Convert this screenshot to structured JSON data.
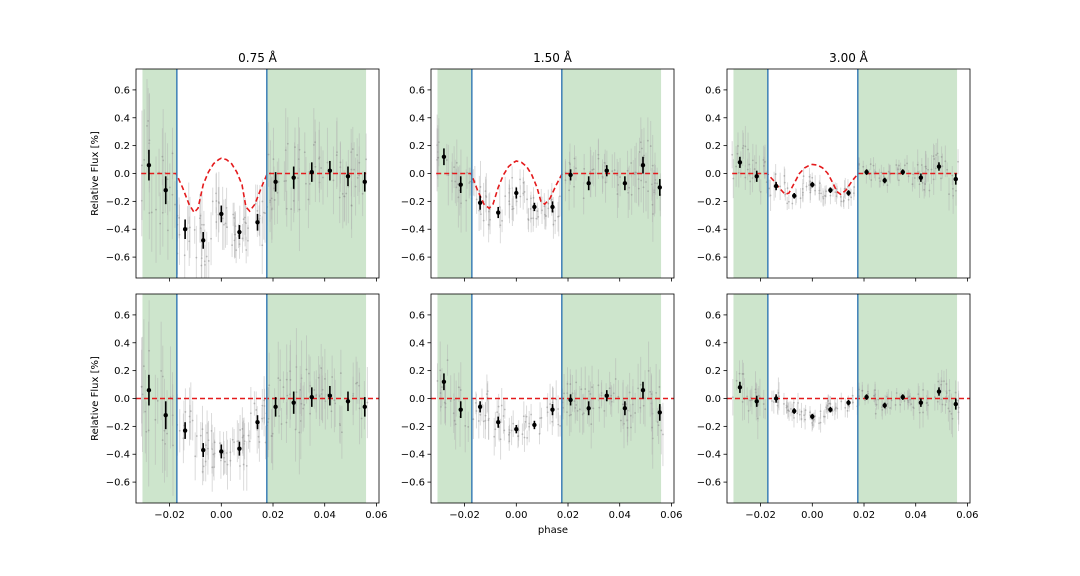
{
  "figure": {
    "shared_xlabel": "phase",
    "shared_ylabel": "Relative Flux [%]",
    "colors": {
      "shade": "#cde5cc",
      "transit_line": "#3d7fb6",
      "model": "#e41a1c",
      "binned": "#000000",
      "raw": "#b0b0b0"
    }
  },
  "chart_data": [
    {
      "type": "scatter",
      "title": "0.75 Å",
      "xlim": [
        -0.033,
        0.061
      ],
      "ylim": [
        -0.75,
        0.75
      ],
      "x_ticks": [
        -0.02,
        0.0,
        0.02,
        0.04,
        0.06
      ],
      "x_tick_labels": [
        "",
        "",
        "",
        "",
        ""
      ],
      "y_ticks": [
        -0.6,
        -0.4,
        -0.2,
        0.0,
        0.2,
        0.4,
        0.6
      ],
      "y_tick_labels": [
        "−0.6",
        "−0.4",
        "−0.2",
        "0.0",
        "0.2",
        "0.4",
        "0.6"
      ],
      "shaded_regions": [
        [
          -0.0305,
          -0.0172
        ],
        [
          0.0176,
          0.056
        ]
      ],
      "transit_lines": [
        -0.0172,
        0.0176
      ],
      "series": [
        {
          "x": [
            -0.028,
            -0.0215,
            -0.014,
            -0.007,
            0.0,
            0.007,
            0.014,
            0.021,
            0.028,
            0.035,
            0.042,
            0.049,
            0.0555
          ],
          "y": [
            0.06,
            -0.12,
            -0.4,
            -0.48,
            -0.29,
            -0.42,
            -0.35,
            -0.06,
            -0.03,
            0.01,
            0.02,
            -0.02,
            -0.06
          ],
          "err": [
            0.11,
            0.1,
            0.07,
            0.06,
            0.06,
            0.05,
            0.06,
            0.07,
            0.08,
            0.07,
            0.07,
            0.07,
            0.07
          ]
        }
      ],
      "model": {
        "x": [
          -0.031,
          -0.0175,
          -0.015,
          -0.0125,
          -0.0105,
          -0.009,
          -0.007,
          -0.005,
          -0.003,
          -0.001,
          0.0,
          0.002,
          0.004,
          0.006,
          0.008,
          0.0095,
          0.011,
          0.013,
          0.0155,
          0.0178,
          0.056
        ],
        "y": [
          0.0,
          0.0,
          -0.1,
          -0.22,
          -0.28,
          -0.25,
          -0.08,
          0.01,
          0.07,
          0.1,
          0.11,
          0.1,
          0.07,
          0.01,
          -0.08,
          -0.24,
          -0.27,
          -0.22,
          -0.1,
          0.0,
          0.0
        ]
      }
    },
    {
      "type": "scatter",
      "title": "1.50 Å",
      "xlim": [
        -0.033,
        0.061
      ],
      "ylim": [
        -0.75,
        0.75
      ],
      "x_ticks": [
        -0.02,
        0.0,
        0.02,
        0.04,
        0.06
      ],
      "x_tick_labels": [
        "",
        "",
        "",
        "",
        ""
      ],
      "y_ticks": [
        -0.6,
        -0.4,
        -0.2,
        0.0,
        0.2,
        0.4,
        0.6
      ],
      "y_tick_labels": [
        "−0.6",
        "−0.4",
        "−0.2",
        "0.0",
        "0.2",
        "0.4",
        "0.6"
      ],
      "shaded_regions": [
        [
          -0.0305,
          -0.0172
        ],
        [
          0.0176,
          0.056
        ]
      ],
      "transit_lines": [
        -0.0172,
        0.0176
      ],
      "series": [
        {
          "x": [
            -0.028,
            -0.0215,
            -0.014,
            -0.007,
            0.0,
            0.007,
            0.014,
            0.021,
            0.028,
            0.035,
            0.042,
            0.049,
            0.0555
          ],
          "y": [
            0.12,
            -0.08,
            -0.21,
            -0.28,
            -0.14,
            -0.24,
            -0.24,
            -0.01,
            -0.07,
            0.02,
            -0.07,
            0.06,
            -0.1
          ],
          "err": [
            0.06,
            0.06,
            0.05,
            0.04,
            0.04,
            0.03,
            0.04,
            0.04,
            0.05,
            0.04,
            0.05,
            0.06,
            0.06
          ]
        }
      ],
      "model": {
        "x": [
          -0.031,
          -0.0175,
          -0.015,
          -0.0125,
          -0.0105,
          -0.009,
          -0.007,
          -0.005,
          -0.003,
          -0.001,
          0.0,
          0.002,
          0.004,
          0.006,
          0.008,
          0.0095,
          0.011,
          0.013,
          0.0155,
          0.0178,
          0.056
        ],
        "y": [
          0.0,
          0.0,
          -0.12,
          -0.22,
          -0.25,
          -0.22,
          -0.1,
          -0.01,
          0.05,
          0.08,
          0.09,
          0.08,
          0.05,
          -0.01,
          -0.1,
          -0.2,
          -0.22,
          -0.18,
          -0.08,
          0.0,
          0.0
        ]
      }
    },
    {
      "type": "scatter",
      "title": "3.00 Å",
      "xlim": [
        -0.033,
        0.061
      ],
      "ylim": [
        -0.75,
        0.75
      ],
      "x_ticks": [
        -0.02,
        0.0,
        0.02,
        0.04,
        0.06
      ],
      "x_tick_labels": [
        "",
        "",
        "",
        "",
        ""
      ],
      "y_ticks": [
        -0.6,
        -0.4,
        -0.2,
        0.0,
        0.2,
        0.4,
        0.6
      ],
      "y_tick_labels": [
        "−0.6",
        "−0.4",
        "−0.2",
        "0.0",
        "0.2",
        "0.4",
        "0.6"
      ],
      "shaded_regions": [
        [
          -0.0305,
          -0.0172
        ],
        [
          0.0176,
          0.056
        ]
      ],
      "transit_lines": [
        -0.0172,
        0.0176
      ],
      "series": [
        {
          "x": [
            -0.028,
            -0.0215,
            -0.014,
            -0.007,
            0.0,
            0.007,
            0.014,
            0.021,
            0.028,
            0.035,
            0.042,
            0.049,
            0.0555
          ],
          "y": [
            0.08,
            -0.02,
            -0.09,
            -0.16,
            -0.08,
            -0.12,
            -0.14,
            0.01,
            -0.05,
            0.01,
            -0.03,
            0.05,
            -0.04
          ],
          "err": [
            0.04,
            0.04,
            0.03,
            0.02,
            0.02,
            0.02,
            0.02,
            0.02,
            0.02,
            0.02,
            0.03,
            0.03,
            0.04
          ]
        }
      ],
      "model": {
        "x": [
          -0.031,
          -0.0175,
          -0.015,
          -0.0125,
          -0.0105,
          -0.009,
          -0.007,
          -0.005,
          -0.003,
          -0.001,
          0.0,
          0.002,
          0.004,
          0.006,
          0.008,
          0.0095,
          0.011,
          0.013,
          0.0155,
          0.0178,
          0.056
        ],
        "y": [
          0.0,
          0.0,
          -0.05,
          -0.11,
          -0.15,
          -0.14,
          -0.07,
          0.0,
          0.04,
          0.06,
          0.065,
          0.06,
          0.04,
          0.0,
          -0.07,
          -0.13,
          -0.15,
          -0.12,
          -0.05,
          0.0,
          0.0
        ]
      }
    },
    {
      "type": "scatter",
      "title": "",
      "xlim": [
        -0.033,
        0.061
      ],
      "ylim": [
        -0.75,
        0.75
      ],
      "x_ticks": [
        -0.02,
        0.0,
        0.02,
        0.04,
        0.06
      ],
      "x_tick_labels": [
        "−0.02",
        "0.00",
        "0.02",
        "0.04",
        "0.06"
      ],
      "y_ticks": [
        -0.6,
        -0.4,
        -0.2,
        0.0,
        0.2,
        0.4,
        0.6
      ],
      "y_tick_labels": [
        "−0.6",
        "−0.4",
        "−0.2",
        "0.0",
        "0.2",
        "0.4",
        "0.6"
      ],
      "shaded_regions": [
        [
          -0.0305,
          -0.0172
        ],
        [
          0.0176,
          0.056
        ]
      ],
      "transit_lines": [
        -0.0172,
        0.0176
      ],
      "flat_line": 0.0,
      "series": [
        {
          "x": [
            -0.028,
            -0.0215,
            -0.014,
            -0.007,
            0.0,
            0.007,
            0.014,
            0.021,
            0.028,
            0.035,
            0.042,
            0.049,
            0.0555
          ],
          "y": [
            0.06,
            -0.12,
            -0.23,
            -0.37,
            -0.38,
            -0.36,
            -0.17,
            -0.06,
            -0.03,
            0.01,
            0.02,
            -0.02,
            -0.06
          ],
          "err": [
            0.11,
            0.1,
            0.06,
            0.05,
            0.05,
            0.05,
            0.05,
            0.07,
            0.08,
            0.07,
            0.07,
            0.07,
            0.07
          ]
        }
      ]
    },
    {
      "type": "scatter",
      "title": "",
      "xlabel": "phase",
      "xlim": [
        -0.033,
        0.061
      ],
      "ylim": [
        -0.75,
        0.75
      ],
      "x_ticks": [
        -0.02,
        0.0,
        0.02,
        0.04,
        0.06
      ],
      "x_tick_labels": [
        "−0.02",
        "0.00",
        "0.02",
        "0.04",
        "0.06"
      ],
      "y_ticks": [
        -0.6,
        -0.4,
        -0.2,
        0.0,
        0.2,
        0.4,
        0.6
      ],
      "y_tick_labels": [
        "−0.6",
        "−0.4",
        "−0.2",
        "0.0",
        "0.2",
        "0.4",
        "0.6"
      ],
      "shaded_regions": [
        [
          -0.0305,
          -0.0172
        ],
        [
          0.0176,
          0.056
        ]
      ],
      "transit_lines": [
        -0.0172,
        0.0176
      ],
      "flat_line": 0.0,
      "series": [
        {
          "x": [
            -0.028,
            -0.0215,
            -0.014,
            -0.007,
            0.0,
            0.007,
            0.014,
            0.021,
            0.028,
            0.035,
            0.042,
            0.049,
            0.0555
          ],
          "y": [
            0.12,
            -0.08,
            -0.06,
            -0.17,
            -0.22,
            -0.19,
            -0.08,
            -0.01,
            -0.07,
            0.02,
            -0.07,
            0.06,
            -0.1
          ],
          "err": [
            0.06,
            0.06,
            0.04,
            0.04,
            0.03,
            0.03,
            0.04,
            0.04,
            0.05,
            0.04,
            0.05,
            0.06,
            0.06
          ]
        }
      ]
    },
    {
      "type": "scatter",
      "title": "",
      "xlim": [
        -0.033,
        0.061
      ],
      "ylim": [
        -0.75,
        0.75
      ],
      "x_ticks": [
        -0.02,
        0.0,
        0.02,
        0.04,
        0.06
      ],
      "x_tick_labels": [
        "−0.02",
        "0.00",
        "0.02",
        "0.04",
        "0.06"
      ],
      "y_ticks": [
        -0.6,
        -0.4,
        -0.2,
        0.0,
        0.2,
        0.4,
        0.6
      ],
      "y_tick_labels": [
        "−0.6",
        "−0.4",
        "−0.2",
        "0.0",
        "0.2",
        "0.4",
        "0.6"
      ],
      "shaded_regions": [
        [
          -0.0305,
          -0.0172
        ],
        [
          0.0176,
          0.056
        ]
      ],
      "transit_lines": [
        -0.0172,
        0.0176
      ],
      "flat_line": 0.0,
      "series": [
        {
          "x": [
            -0.028,
            -0.0215,
            -0.014,
            -0.007,
            0.0,
            0.007,
            0.014,
            0.021,
            0.028,
            0.035,
            0.042,
            0.049,
            0.0555
          ],
          "y": [
            0.08,
            -0.02,
            0.0,
            -0.09,
            -0.13,
            -0.08,
            -0.03,
            0.01,
            -0.05,
            0.01,
            -0.03,
            0.05,
            -0.04
          ],
          "err": [
            0.04,
            0.04,
            0.03,
            0.02,
            0.02,
            0.02,
            0.02,
            0.02,
            0.02,
            0.02,
            0.03,
            0.03,
            0.04
          ]
        }
      ]
    }
  ]
}
